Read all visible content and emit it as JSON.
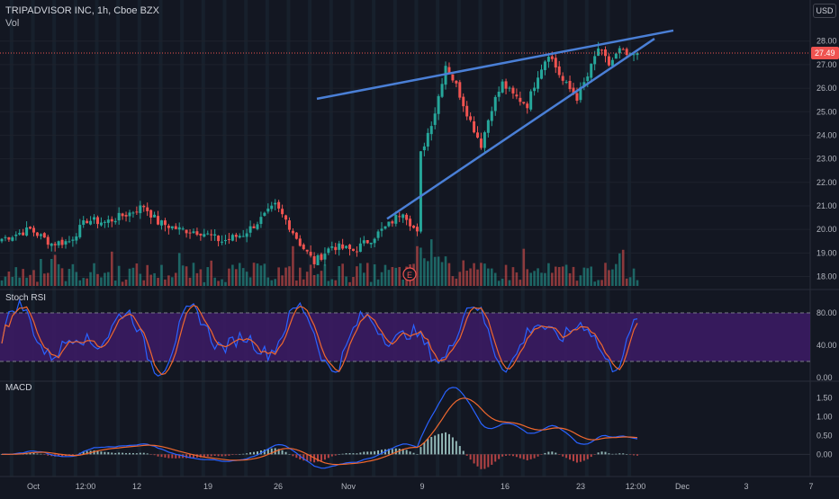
{
  "header": {
    "title": "TRIPADVISOR INC, 1h, Cboe BZX",
    "volume_label": "Vol",
    "currency": "USD"
  },
  "price_tag": "27.49",
  "earnings_marker": "E",
  "colors": {
    "background": "#131722",
    "up": "#26a69a",
    "down": "#ef5350",
    "trendline": "#4a7fd6",
    "stoch_band": "#3d1b66",
    "stoch_k": "#2962ff",
    "stoch_d": "#f0682e",
    "macd_line": "#2962ff",
    "signal_line": "#f0682e",
    "price_line": "#ef5350"
  },
  "chart_data": [
    {
      "type": "candlestick",
      "title": "TRIPADVISOR INC, 1h, Cboe BZX",
      "ylim": [
        17.6,
        28.6
      ],
      "y_ticks": [
        "28.00",
        "27.00",
        "26.00",
        "25.00",
        "24.00",
        "23.00",
        "22.00",
        "21.00",
        "20.00",
        "19.00",
        "18.00"
      ],
      "x_ticks": [
        "Oct",
        "12:00",
        "12",
        "19",
        "26",
        "Nov",
        "9",
        "16",
        "23",
        "12:00",
        "Dec",
        "3",
        "7"
      ],
      "anchors": [
        {
          "x": 0,
          "y": 19.6
        },
        {
          "x": 8,
          "y": 20.0
        },
        {
          "x": 14,
          "y": 19.4
        },
        {
          "x": 19,
          "y": 19.5
        },
        {
          "x": 24,
          "y": 20.4
        },
        {
          "x": 29,
          "y": 20.3
        },
        {
          "x": 36,
          "y": 20.7
        },
        {
          "x": 40,
          "y": 21.0
        },
        {
          "x": 44,
          "y": 20.3
        },
        {
          "x": 50,
          "y": 20.0
        },
        {
          "x": 56,
          "y": 19.9
        },
        {
          "x": 62,
          "y": 19.5
        },
        {
          "x": 68,
          "y": 19.8
        },
        {
          "x": 72,
          "y": 20.3
        },
        {
          "x": 77,
          "y": 21.0
        },
        {
          "x": 80,
          "y": 20.4
        },
        {
          "x": 84,
          "y": 19.4
        },
        {
          "x": 88,
          "y": 18.6
        },
        {
          "x": 93,
          "y": 19.3
        },
        {
          "x": 99,
          "y": 19.1
        },
        {
          "x": 104,
          "y": 19.6
        },
        {
          "x": 109,
          "y": 20.2
        },
        {
          "x": 113,
          "y": 20.8
        },
        {
          "x": 117,
          "y": 19.8
        },
        {
          "x": 118,
          "y": 23.2
        },
        {
          "x": 122,
          "y": 25.0
        },
        {
          "x": 125,
          "y": 27.0
        },
        {
          "x": 128,
          "y": 26.1
        },
        {
          "x": 132,
          "y": 24.6
        },
        {
          "x": 135,
          "y": 23.6
        },
        {
          "x": 138,
          "y": 25.2
        },
        {
          "x": 141,
          "y": 26.2
        },
        {
          "x": 144,
          "y": 25.7
        },
        {
          "x": 148,
          "y": 25.3
        },
        {
          "x": 151,
          "y": 26.6
        },
        {
          "x": 154,
          "y": 27.5
        },
        {
          "x": 158,
          "y": 26.3
        },
        {
          "x": 162,
          "y": 25.6
        },
        {
          "x": 165,
          "y": 26.5
        },
        {
          "x": 168,
          "y": 27.7
        },
        {
          "x": 171,
          "y": 27.0
        },
        {
          "x": 174,
          "y": 27.6
        },
        {
          "x": 177,
          "y": 27.3
        },
        {
          "x": 179,
          "y": 27.49
        }
      ],
      "current_price": 27.49
    },
    {
      "type": "bar",
      "title": "Vol",
      "up_color": "#26a69a",
      "down_color": "#ef5350"
    },
    {
      "type": "line",
      "title": "Stoch RSI",
      "ylim": [
        0,
        100
      ],
      "y_ticks": [
        "80.00",
        "40.00",
        "0.00"
      ],
      "band": [
        20,
        80
      ],
      "series": [
        {
          "name": "",
          "color": "#2962ff"
        },
        {
          "name": "",
          "color": "#f0682e"
        }
      ]
    },
    {
      "type": "line",
      "title": "MACD",
      "ylim": [
        -0.35,
        1.8
      ],
      "y_ticks": [
        "1.50",
        "1.00",
        "0.50",
        "0.00"
      ],
      "series": [
        {
          "name": "",
          "color": "#2962ff"
        },
        {
          "name": "",
          "color": "#f0682e"
        }
      ]
    }
  ]
}
